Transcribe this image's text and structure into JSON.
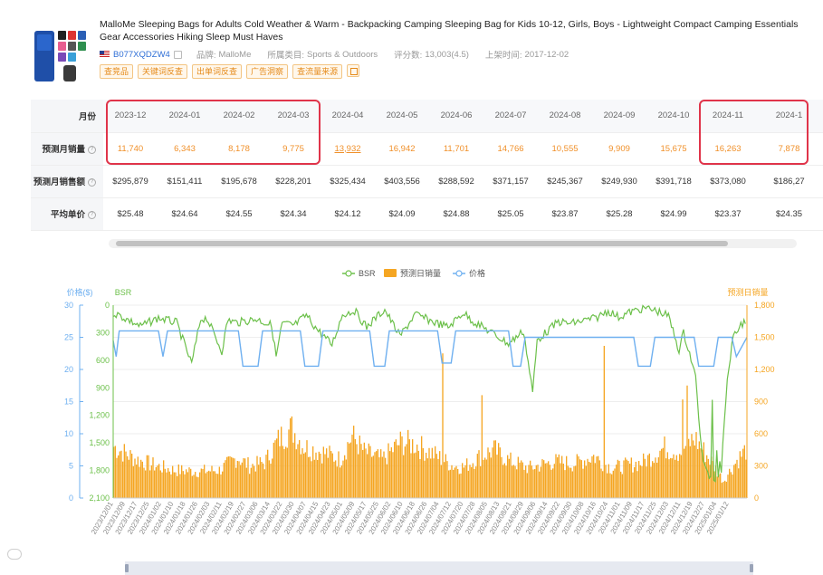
{
  "product": {
    "title": "MalloMe Sleeping Bags for Adults Cold Weather & Warm - Backpacking Camping Sleeping Bag for Kids 10-12, Girls, Boys - Lightweight Compact Camping Essentials Gear Accessories Hiking Sleep Must Haves",
    "asin": "B077XQDZW4",
    "brand_label": "品牌:",
    "brand": "MalloMe",
    "category_label": "所属类目:",
    "category": "Sports & Outdoors",
    "rating_label": "评分数:",
    "rating": "13,003(4.5)",
    "listed_label": "上架时间:",
    "listed": "2017-12-02",
    "tags": [
      "查竞品",
      "关键词反查",
      "出单词反查",
      "广告洞察",
      "查流量来源"
    ]
  },
  "table": {
    "month_label": "月份",
    "months": [
      "2023-12",
      "2024-01",
      "2024-02",
      "2024-03",
      "2024-04",
      "2024-05",
      "2024-06",
      "2024-07",
      "2024-08",
      "2024-09",
      "2024-10",
      "2024-11",
      "2024-1"
    ],
    "rows": [
      {
        "label": "预测月销量",
        "help": "?",
        "values": [
          "11,740",
          "6,343",
          "8,178",
          "9,775",
          "13,932",
          "16,942",
          "11,701",
          "14,766",
          "10,555",
          "9,909",
          "15,675",
          "16,263",
          "7,878"
        ]
      },
      {
        "label": "预测月销售额",
        "help": "?",
        "values": [
          "$295,879",
          "$151,411",
          "$195,678",
          "$228,201",
          "$325,434",
          "$403,556",
          "$288,592",
          "$371,157",
          "$245,367",
          "$249,930",
          "$391,718",
          "$373,080",
          "$186,27"
        ]
      },
      {
        "label": "平均单价",
        "help": "?",
        "values": [
          "$25.48",
          "$24.64",
          "$24.55",
          "$24.34",
          "$24.12",
          "$24.09",
          "$24.88",
          "$25.05",
          "$23.87",
          "$25.28",
          "$24.99",
          "$23.37",
          "$24.35"
        ]
      }
    ]
  },
  "colors": {
    "bsr": "#6cc04a",
    "sales": "#f5a623",
    "price": "#6fb0f0",
    "highlight": "#e0344a",
    "accent": "#f0902a"
  },
  "chart_data": {
    "type": "line",
    "legend": [
      {
        "name": "BSR",
        "marker": "circle-line"
      },
      {
        "name": "预测日销量",
        "marker": "rect"
      },
      {
        "name": "价格",
        "marker": "circle-line"
      }
    ],
    "legend_position": "top-center",
    "axes": {
      "price": {
        "title": "价格($)",
        "side": "left",
        "ticks": [
          "0",
          "5",
          "10",
          "15",
          "20",
          "25",
          "30"
        ],
        "range": [
          0,
          30
        ]
      },
      "bsr": {
        "title": "BSR",
        "side": "left-inner",
        "inverted": true,
        "ticks": [
          "0",
          "300",
          "600",
          "900",
          "1,200",
          "1,500",
          "1,800",
          "2,100"
        ],
        "range": [
          0,
          2100
        ]
      },
      "sales": {
        "title": "预测日销量",
        "side": "right",
        "ticks": [
          "0",
          "300",
          "600",
          "900",
          "1,200",
          "1,500",
          "1,800"
        ],
        "range": [
          0,
          1800
        ]
      }
    },
    "x_labels": [
      "2023/12/01",
      "2023/12/09",
      "2023/12/17",
      "2023/12/25",
      "2024/01/02",
      "2024/01/10",
      "2024/01/18",
      "2024/01/26",
      "2024/02/03",
      "2024/02/11",
      "2024/02/19",
      "2024/02/27",
      "2024/03/06",
      "2024/03/14",
      "2024/03/22",
      "2024/03/30",
      "2024/04/07",
      "2024/04/15",
      "2024/04/23",
      "2024/05/01",
      "2024/05/09",
      "2024/05/17",
      "2024/05/25",
      "2024/06/02",
      "2024/06/10",
      "2024/06/18",
      "2024/06/26",
      "2024/07/04",
      "2024/07/12",
      "2024/07/20",
      "2024/07/28",
      "2024/08/05",
      "2024/08/13",
      "2024/08/21",
      "2024/08/29",
      "2024/09/06",
      "2024/09/14",
      "2024/09/22",
      "2024/09/30",
      "2024/10/08",
      "2024/10/16",
      "2024/10/24",
      "2024/11/01",
      "2024/11/09",
      "2024/11/17",
      "2024/11/25",
      "2024/12/03",
      "2024/12/11",
      "2024/12/19",
      "2024/12/27",
      "2025/01/04",
      "2025/01/12"
    ],
    "day_count": 420,
    "daily_sales_profile": [
      [
        0,
        480
      ],
      [
        15,
        360
      ],
      [
        28,
        300
      ],
      [
        40,
        260
      ],
      [
        55,
        250
      ],
      [
        70,
        260
      ],
      [
        82,
        380
      ],
      [
        90,
        300
      ],
      [
        100,
        330
      ],
      [
        110,
        560
      ],
      [
        118,
        650
      ],
      [
        126,
        480
      ],
      [
        140,
        420
      ],
      [
        150,
        360
      ],
      [
        158,
        580
      ],
      [
        166,
        430
      ],
      [
        178,
        360
      ],
      [
        190,
        520
      ],
      [
        200,
        500
      ],
      [
        212,
        410
      ],
      [
        225,
        300
      ],
      [
        232,
        290
      ],
      [
        242,
        380
      ],
      [
        252,
        450
      ],
      [
        262,
        350
      ],
      [
        275,
        280
      ],
      [
        292,
        340
      ],
      [
        305,
        320
      ],
      [
        318,
        390
      ],
      [
        330,
        280
      ],
      [
        350,
        330
      ],
      [
        365,
        470
      ],
      [
        375,
        430
      ],
      [
        385,
        560
      ],
      [
        395,
        360
      ],
      [
        404,
        160
      ],
      [
        412,
        330
      ],
      [
        420,
        470
      ]
    ],
    "daily_sales_spikes": [
      [
        218,
        1350
      ],
      [
        244,
        960
      ],
      [
        325,
        1420
      ],
      [
        377,
        920
      ],
      [
        380,
        1050
      ]
    ],
    "bsr_profile": [
      [
        0,
        80
      ],
      [
        10,
        160
      ],
      [
        18,
        230
      ],
      [
        30,
        140
      ],
      [
        42,
        190
      ],
      [
        52,
        640
      ],
      [
        58,
        150
      ],
      [
        62,
        140
      ],
      [
        72,
        500
      ],
      [
        76,
        160
      ],
      [
        82,
        190
      ],
      [
        95,
        150
      ],
      [
        105,
        220
      ],
      [
        108,
        560
      ],
      [
        112,
        200
      ],
      [
        120,
        220
      ],
      [
        128,
        110
      ],
      [
        135,
        260
      ],
      [
        145,
        430
      ],
      [
        152,
        100
      ],
      [
        160,
        60
      ],
      [
        168,
        240
      ],
      [
        175,
        120
      ],
      [
        180,
        50
      ],
      [
        190,
        340
      ],
      [
        200,
        100
      ],
      [
        212,
        180
      ],
      [
        222,
        240
      ],
      [
        232,
        80
      ],
      [
        238,
        170
      ],
      [
        250,
        290
      ],
      [
        262,
        420
      ],
      [
        272,
        280
      ],
      [
        278,
        950
      ],
      [
        281,
        380
      ],
      [
        295,
        180
      ],
      [
        303,
        200
      ],
      [
        320,
        140
      ],
      [
        328,
        60
      ],
      [
        335,
        130
      ],
      [
        342,
        80
      ],
      [
        352,
        30
      ],
      [
        360,
        60
      ],
      [
        368,
        120
      ],
      [
        375,
        490
      ],
      [
        378,
        300
      ],
      [
        382,
        520
      ],
      [
        386,
        790
      ],
      [
        390,
        1600
      ],
      [
        393,
        1820
      ],
      [
        398,
        1900
      ],
      [
        403,
        1800
      ],
      [
        406,
        1000
      ],
      [
        410,
        400
      ],
      [
        415,
        230
      ],
      [
        420,
        150
      ]
    ],
    "bsr_deep": [
      [
        397,
        1030
      ],
      [
        400,
        1580
      ],
      [
        402,
        1700
      ]
    ],
    "price_segments": [
      [
        0,
        24.5
      ],
      [
        2,
        22
      ],
      [
        4,
        26
      ],
      [
        30,
        26
      ],
      [
        33,
        22
      ],
      [
        36,
        26
      ],
      [
        83,
        26
      ],
      [
        86,
        20.5
      ],
      [
        96,
        20.5
      ],
      [
        99,
        26
      ],
      [
        124,
        26
      ],
      [
        127,
        20.5
      ],
      [
        136,
        20.5
      ],
      [
        139,
        26
      ],
      [
        170,
        26
      ],
      [
        173,
        20.5
      ],
      [
        180,
        20.5
      ],
      [
        183,
        26
      ],
      [
        215,
        26
      ],
      [
        218,
        21
      ],
      [
        224,
        21
      ],
      [
        227,
        26
      ],
      [
        262,
        26
      ],
      [
        265,
        20.5
      ],
      [
        270,
        20.5
      ],
      [
        273,
        25
      ],
      [
        330,
        25
      ],
      [
        333,
        25
      ],
      [
        345,
        25
      ],
      [
        348,
        20.5
      ],
      [
        356,
        20.5
      ],
      [
        359,
        25
      ],
      [
        385,
        25
      ],
      [
        388,
        20.5
      ],
      [
        398,
        20.5
      ],
      [
        401,
        25
      ],
      [
        410,
        25
      ],
      [
        413,
        22
      ],
      [
        420,
        25
      ]
    ]
  }
}
